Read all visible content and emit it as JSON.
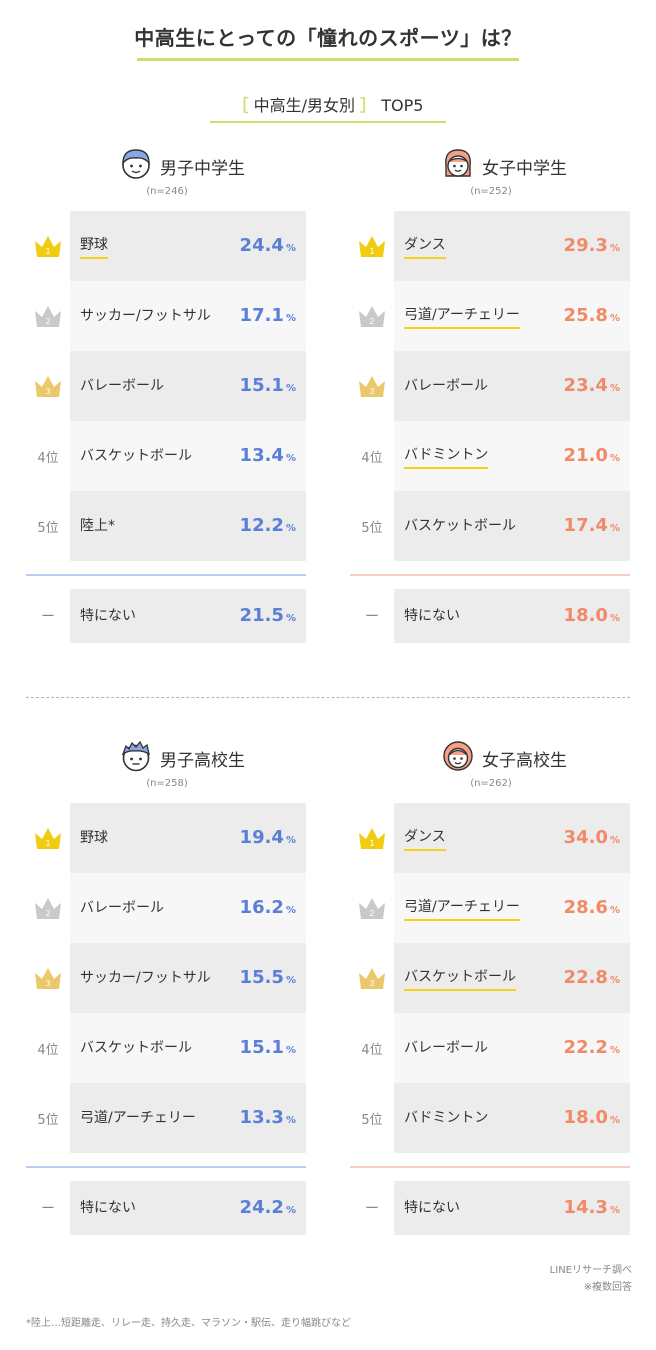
{
  "header": {
    "title": "中高生にとっての「憧れのスポーツ」は？",
    "subtitle_open": "［",
    "subtitle_text": "中高生/男女別",
    "subtitle_close": "］",
    "subtitle_suffix": "TOP5"
  },
  "unit": "%",
  "colors": {
    "boys": "#5a7fd6",
    "girls": "#f08a68",
    "gold": "#f2cc12",
    "silver": "#c9c9c9",
    "bronze": "#ebc76a",
    "green": "#c6e36b"
  },
  "chart_data": [
    {
      "type": "table",
      "title": "男子中学生",
      "n": "(n=246)",
      "ranks": [
        "1",
        "2",
        "3",
        "4位",
        "5位"
      ],
      "categories": [
        "野球",
        "サッカー/フットサル",
        "バレーボール",
        "バスケットボール",
        "陸上*"
      ],
      "values": [
        24.4,
        17.1,
        15.1,
        13.4,
        12.2
      ],
      "none_rank": "ー",
      "none_label": "特にない",
      "none_value": 21.5
    },
    {
      "type": "table",
      "title": "女子中学生",
      "n": "(n=252)",
      "ranks": [
        "1",
        "2",
        "3",
        "4位",
        "5位"
      ],
      "categories": [
        "ダンス",
        "弓道/アーチェリー",
        "バレーボール",
        "バドミントン",
        "バスケットボール"
      ],
      "values": [
        29.3,
        25.8,
        23.4,
        21.0,
        17.4
      ],
      "none_rank": "ー",
      "none_label": "特にない",
      "none_value": 18.0
    },
    {
      "type": "table",
      "title": "男子高校生",
      "n": "(n=258)",
      "ranks": [
        "1",
        "2",
        "3",
        "4位",
        "5位"
      ],
      "categories": [
        "野球",
        "バレーボール",
        "サッカー/フットサル",
        "バスケットボール",
        "弓道/アーチェリー"
      ],
      "values": [
        19.4,
        16.2,
        15.5,
        15.1,
        13.3
      ],
      "none_rank": "ー",
      "none_label": "特にない",
      "none_value": 24.2
    },
    {
      "type": "table",
      "title": "女子高校生",
      "n": "(n=262)",
      "ranks": [
        "1",
        "2",
        "3",
        "4位",
        "5位"
      ],
      "categories": [
        "ダンス",
        "弓道/アーチェリー",
        "バスケットボール",
        "バレーボール",
        "バドミントン"
      ],
      "values": [
        34.0,
        28.6,
        22.8,
        22.2,
        18.0
      ],
      "none_rank": "ー",
      "none_label": "特にない",
      "none_value": 14.3
    }
  ],
  "source": {
    "line1": "LINEリサーチ調べ",
    "line2": "※複数回答"
  },
  "footnote": "*陸上…短距離走、リレー走、持久走、マラソン・駅伝、走り幅跳びなど"
}
